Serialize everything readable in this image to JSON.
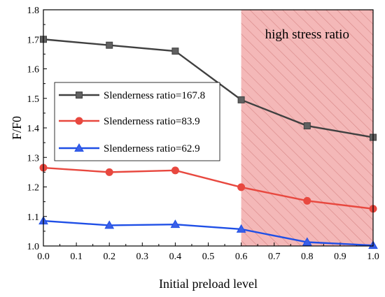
{
  "chart_data": {
    "type": "line",
    "xlabel": "Initial preload level",
    "ylabel": "F/F0",
    "xlim": [
      0.0,
      1.0
    ],
    "ylim": [
      1.0,
      1.8
    ],
    "xticks": [
      "0.0",
      "0.1",
      "0.2",
      "0.3",
      "0.4",
      "0.5",
      "0.6",
      "0.7",
      "0.8",
      "0.9",
      "1.0"
    ],
    "yticks": [
      "1.0",
      "1.1",
      "1.2",
      "1.3",
      "1.4",
      "1.5",
      "1.6",
      "1.7",
      "1.8"
    ],
    "x": [
      0.0,
      0.2,
      0.4,
      0.6,
      0.8,
      1.0
    ],
    "series": [
      {
        "name": "Slenderness ratio=167.8",
        "values": [
          1.7,
          1.68,
          1.66,
          1.495,
          1.407,
          1.368
        ],
        "color": "#404040",
        "fill": "#606060",
        "marker": "square"
      },
      {
        "name": "Slenderness ratio=83.9",
        "values": [
          1.265,
          1.25,
          1.256,
          1.199,
          1.153,
          1.126
        ],
        "color": "#e8483f",
        "fill": "#e8483f",
        "marker": "circle"
      },
      {
        "name": "Slenderness ratio=62.9",
        "values": [
          1.085,
          1.07,
          1.073,
          1.057,
          1.013,
          1.002
        ],
        "color": "#1f4fe6",
        "fill": "#3a5fe8",
        "marker": "triangle"
      }
    ],
    "region": {
      "label": "high stress ratio",
      "x_start": 0.6,
      "x_end": 1.0,
      "color": "#f4b8b8",
      "hatch_color": "#d98a8a"
    },
    "legend_position": "center-left",
    "grid": false
  }
}
